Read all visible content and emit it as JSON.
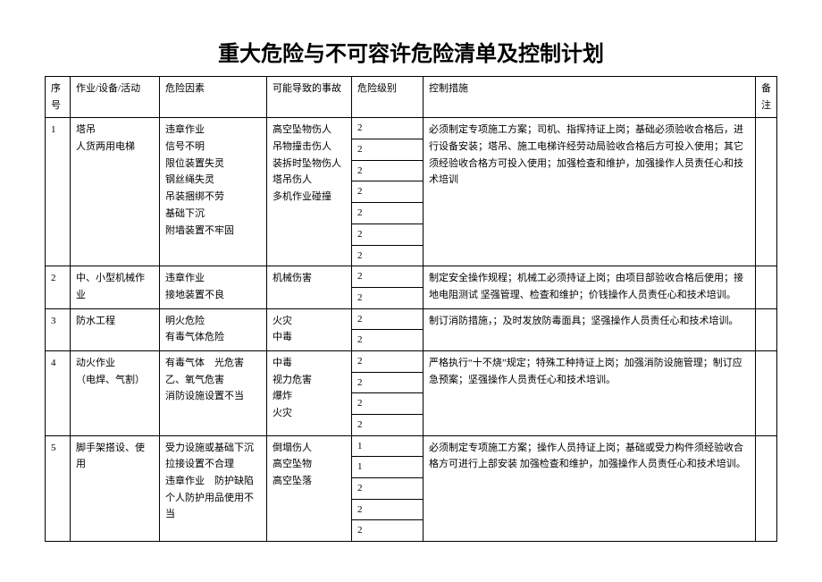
{
  "title": "重大危险与不可容许危险清单及控制计划",
  "headers": {
    "idx": "序号",
    "activity": "作业/设备/活动",
    "factor": "危险因素",
    "accident": "可能导致的事故",
    "level": "危险级别",
    "control": "控制措施",
    "note": "备注"
  },
  "rows": [
    {
      "idx": "1",
      "activity": "塔吊\n人货两用电梯",
      "factor": "违章作业\n信号不明\n限位装置失灵\n钢丝绳失灵\n吊装捆绑不劳\n基础下沉\n附墙装置不牢固",
      "accident": "高空坠物伤人\n吊物撞击伤人\n装拆时坠物伤人\n塔吊伤人\n多机作业碰撞",
      "levels": [
        "2",
        "2",
        "2",
        "2",
        "2",
        "2",
        "2"
      ],
      "control": "必须制定专项施工方案；司机、指挥持证上岗；基础必须验收合格后，进行设备安装；塔吊、施工电梯许经劳动局验收合格后方可投入使用；其它须经验收合格方可投入使用；加强检查和维护，加强操作人员责任心和技术培训",
      "note": ""
    },
    {
      "idx": "2",
      "activity": "中、小型机械作业",
      "factor": "违章作业\n接地装置不良",
      "accident": "机械伤害",
      "levels": [
        "2",
        "2"
      ],
      "control": "制定安全操作规程；机械工必须持证上岗；由项目部验收合格后使用；接地电阻测试  坚强管理、检查和维护；价钱操作人员责任心和技术培训。",
      "note": ""
    },
    {
      "idx": "3",
      "activity": "防水工程",
      "factor": "明火危险\n有毒气体危险",
      "accident": "火灾\n中毒",
      "levels": [
        "2",
        "2"
      ],
      "control": "制订消防措施，；及时发放防毒面具；坚强操作人员责任心和技术培训。",
      "note": ""
    },
    {
      "idx": "4",
      "activity": "动火作业\n（电焊、气割）",
      "factor": "有毒气体　光危害\n乙、氧气危害\n消防设施设置不当",
      "accident": "中毒\n视力危害\n爆炸\n火灾",
      "levels": [
        "2",
        "2",
        "2",
        "2"
      ],
      "control": "严格执行“十不烧”规定；特殊工种持证上岗；加强消防设施管理；制订应急预案；坚强操作人员责任心和技术培训。",
      "note": ""
    },
    {
      "idx": "5",
      "activity": "脚手架搭设、使用",
      "factor": "受力设施或基础下沉\n拉接设置不合理\n违章作业　防护缺陷\n个人防护用品使用不当",
      "accident": "倒塌伤人\n高空坠物\n高空坠落",
      "levels": [
        "1",
        "1",
        "2",
        "2",
        "2"
      ],
      "control": "必须制定专项施工方案；操作人员持证上岗；基础或受力构件须经验收合格方可进行上部安装  加强检查和维护，加强操作人员责任心和技术培训。",
      "note": ""
    }
  ]
}
